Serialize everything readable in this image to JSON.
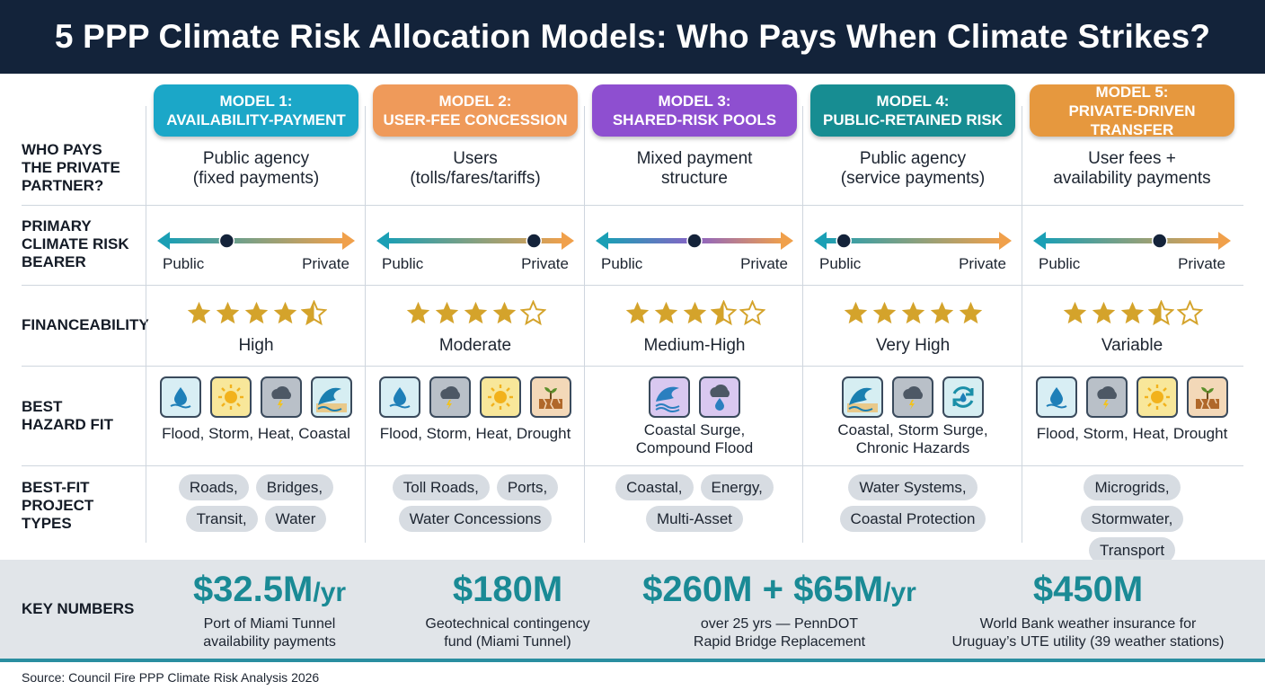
{
  "title": "5 PPP Climate Risk Allocation Models: Who Pays When Climate Strikes?",
  "row_labels": {
    "who_pays": "WHO PAYS THE PRIVATE PARTNER?",
    "risk_bearer": "PRIMARY CLIMATE RISK BEARER",
    "financeability": "FINANCEABILITY",
    "hazard_fit": "BEST HAZARD FIT",
    "project_types": "BEST-FIT PROJECT TYPES"
  },
  "axis": {
    "public": "Public",
    "private": "Private"
  },
  "models": [
    {
      "head1": "MODEL 1:",
      "head2": "AVAILABILITY-PAYMENT",
      "color": "#1ba7c8",
      "who1": "Public agency",
      "who2": "(fixed payments)",
      "bearer_position": 0.33,
      "bar_from": "#1a9fb5",
      "bar_to": "#f0a04b",
      "stars": 4.5,
      "fin_label": "High",
      "hazards": [
        "flood-icon",
        "heat-icon",
        "storm-icon",
        "coastal-icon"
      ],
      "hazard_label": "Flood, Storm, Heat, Coastal",
      "projects": [
        "Roads,",
        "Bridges,",
        "Transit,",
        "Water"
      ]
    },
    {
      "head1": "MODEL 2:",
      "head2": "USER-FEE CONCESSION",
      "color": "#ef9a5a",
      "who1": "Users",
      "who2": "(tolls/fares/tariffs)",
      "bearer_position": 0.84,
      "bar_from": "#1a9fb5",
      "bar_to": "#f0a04b",
      "stars": 4,
      "fin_label": "Moderate",
      "hazards": [
        "flood-icon",
        "storm-icon",
        "heat-icon",
        "drought-icon"
      ],
      "hazard_label": "Flood, Storm, Heat, Drought",
      "projects": [
        "Toll Roads,",
        "Ports,",
        "Water Concessions"
      ]
    },
    {
      "head1": "MODEL 3:",
      "head2": "SHARED-RISK POOLS",
      "color": "#8e4fd0",
      "who1": "Mixed payment",
      "who2": "structure",
      "bearer_position": 0.5,
      "bar_from": "#1a9fb5",
      "bar_mid": "#8a62c6",
      "bar_to": "#f0a04b",
      "stars": 3.5,
      "fin_label": "Medium-High",
      "hazards": [
        "coastal-surge-icon",
        "compound-flood-icon"
      ],
      "hazard_label": "Coastal Surge, Compound Flood",
      "projects": [
        "Coastal,",
        "Energy,",
        "Multi-Asset"
      ]
    },
    {
      "head1": "MODEL 4:",
      "head2": "PUBLIC-RETAINED RISK",
      "color": "#178d92",
      "who1": "Public agency",
      "who2": "(service payments)",
      "bearer_position": 0.1,
      "bar_from": "#1a9fb5",
      "bar_to": "#f0a04b",
      "stars": 5,
      "fin_label": "Very High",
      "hazards": [
        "coastal-icon",
        "storm-icon",
        "chronic-cycle-icon"
      ],
      "hazard_label": "Coastal, Storm Surge, Chronic Hazards",
      "projects": [
        "Water Systems,",
        "Coastal Protection"
      ]
    },
    {
      "head1": "MODEL 5:",
      "head2": "PRIVATE-DRIVEN TRANSFER",
      "color": "#e6983e",
      "who1": "User fees +",
      "who2": "availability payments",
      "bearer_position": 0.66,
      "bar_from": "#1a9fb5",
      "bar_to": "#f0a04b",
      "stars": 3.5,
      "fin_label": "Variable",
      "hazards": [
        "flood-icon",
        "storm-icon",
        "heat-icon",
        "drought-icon"
      ],
      "hazard_label": "Flood, Storm, Heat, Drought",
      "projects": [
        "Microgrids,",
        "Stormwater,",
        "Transport"
      ]
    }
  ],
  "key_label": "KEY NUMBERS",
  "key_numbers": [
    {
      "value": "$32.5M",
      "unit": "/yr",
      "line1": "Port of Miami Tunnel",
      "line2": "availability payments"
    },
    {
      "value": "$180M",
      "unit": "",
      "line1": "Geotechnical contingency",
      "line2": "fund (Miami Tunnel)"
    },
    {
      "value": "$260M + $65M",
      "unit": "/yr",
      "line1": "over 25 yrs — PennDOT",
      "line2": "Rapid Bridge Replacement"
    },
    {
      "value": "$450M",
      "unit": "",
      "line1": "World Bank weather insurance for",
      "line2": "Uruguay’s UTE utility (39 weather stations)"
    }
  ],
  "source": "Source: Council Fire PPP Climate Risk Analysis 2026"
}
